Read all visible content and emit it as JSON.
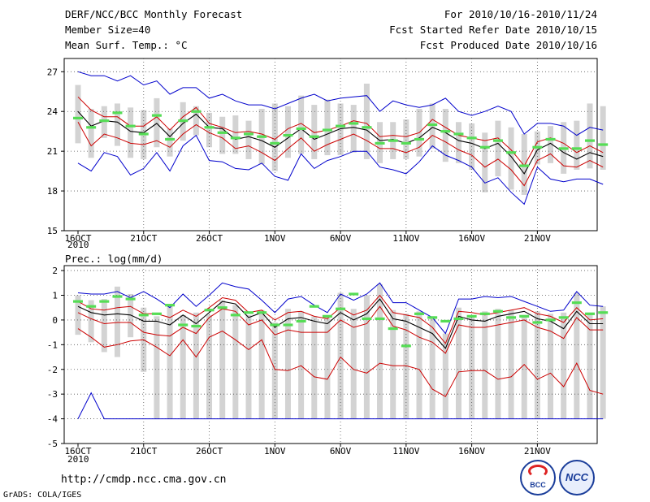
{
  "header": {
    "title": "DERF/NCC/BCC Monthly Forecast",
    "member_size": "Member Size=40",
    "variable": "Mean Surf. Temp.: °C",
    "period": "For 2010/10/16-2010/11/24",
    "started": "Fcst Started Refer Date 2010/10/15",
    "produced": "Fcst Produced Date 2010/10/16"
  },
  "footer": {
    "url": "http://cmdp.ncc.cma.gov.cn",
    "grads": "GrADS: COLA/IGES",
    "logo_bcc": "BCC",
    "logo_ncc": "NCC"
  },
  "colors": {
    "max_min": "#0000cc",
    "spread": "#cc0000",
    "mean": "#000000",
    "median": "#55dd55",
    "box": "#d3d3d3",
    "grid": "#555555"
  },
  "chart_data": [
    {
      "type": "box-line",
      "title": "Mean Surf. Temp.: °C",
      "x_tick_labels": [
        "16OCT",
        "21OCT",
        "26OCT",
        "1NOV",
        "6NOV",
        "11NOV",
        "16NOV",
        "21NOV"
      ],
      "x_start_label": "2010",
      "ylim": [
        15,
        28
      ],
      "yticks": [
        15,
        18,
        21,
        24,
        27
      ],
      "days": 40,
      "series": [
        {
          "name": "max",
          "values": [
            27.0,
            26.7,
            26.7,
            26.3,
            26.7,
            26.0,
            26.3,
            25.3,
            25.8,
            25.8,
            25.0,
            25.3,
            24.8,
            24.5,
            24.5,
            24.2,
            24.6,
            25.0,
            25.3,
            24.8,
            25.0,
            25.1,
            25.2,
            24.0,
            24.8,
            24.5,
            24.3,
            24.5,
            25.0,
            24.0,
            23.7,
            24.0,
            24.4,
            24.0,
            22.3,
            23.1,
            23.1,
            22.9,
            22.2,
            22.8,
            22.6
          ]
        },
        {
          "name": "upper",
          "values": [
            25.1,
            24.1,
            23.6,
            23.6,
            22.9,
            22.9,
            23.6,
            22.6,
            23.6,
            24.3,
            23.1,
            22.8,
            22.4,
            22.5,
            22.3,
            21.9,
            22.7,
            23.1,
            22.4,
            22.6,
            22.9,
            23.3,
            23.1,
            22.1,
            22.2,
            22.1,
            22.4,
            23.4,
            22.8,
            22.2,
            22.0,
            21.8,
            22.0,
            21.1,
            19.9,
            21.7,
            22.0,
            21.6,
            20.9,
            21.4,
            20.9
          ]
        },
        {
          "name": "mean",
          "values": [
            24.0,
            22.9,
            23.3,
            23.2,
            22.5,
            22.4,
            23.1,
            22.1,
            23.1,
            23.8,
            22.8,
            22.7,
            21.9,
            22.1,
            21.8,
            21.3,
            22.0,
            22.7,
            21.9,
            22.3,
            22.7,
            22.8,
            22.6,
            21.8,
            21.9,
            21.6,
            22.0,
            22.8,
            22.4,
            21.8,
            21.6,
            21.2,
            21.6,
            20.6,
            19.3,
            21.1,
            21.6,
            20.9,
            20.4,
            20.9,
            20.6
          ]
        },
        {
          "name": "lower",
          "values": [
            23.2,
            21.4,
            22.3,
            22.0,
            21.6,
            21.5,
            21.8,
            21.3,
            22.3,
            23.0,
            22.4,
            22.0,
            21.2,
            21.4,
            20.9,
            20.3,
            21.2,
            22.0,
            21.0,
            21.5,
            21.9,
            22.3,
            21.8,
            21.2,
            21.2,
            20.9,
            21.3,
            22.2,
            21.7,
            21.1,
            20.7,
            19.8,
            20.4,
            19.6,
            18.4,
            20.3,
            20.8,
            19.9,
            19.8,
            20.3,
            19.8
          ]
        },
        {
          "name": "min",
          "values": [
            20.1,
            19.5,
            20.9,
            20.6,
            19.2,
            19.7,
            20.9,
            19.5,
            21.4,
            22.2,
            20.3,
            20.2,
            19.7,
            19.6,
            20.1,
            19.1,
            18.8,
            20.8,
            19.7,
            20.3,
            20.6,
            21.0,
            21.0,
            19.8,
            19.6,
            19.3,
            20.2,
            21.4,
            20.7,
            20.3,
            19.8,
            18.6,
            19.0,
            17.9,
            17.0,
            19.8,
            18.9,
            18.7,
            18.9,
            18.9,
            18.5
          ]
        },
        {
          "name": "median",
          "values": [
            23.5,
            22.8,
            23.3,
            23.9,
            22.9,
            22.3,
            23.7,
            21.9,
            23.3,
            24.0,
            22.8,
            22.4,
            22.0,
            22.3,
            22.1,
            21.6,
            22.2,
            22.7,
            22.1,
            22.6,
            22.9,
            23.1,
            22.8,
            21.6,
            21.8,
            21.6,
            21.9,
            23.0,
            22.5,
            22.3,
            22.0,
            21.3,
            21.8,
            20.9,
            19.9,
            21.3,
            21.9,
            21.2,
            21.2,
            21.8,
            21.5
          ]
        },
        {
          "name": "box_high",
          "values": [
            26.0,
            24.2,
            24.4,
            24.6,
            24.3,
            24.1,
            25.0,
            22.7,
            24.7,
            24.4,
            23.9,
            23.6,
            23.7,
            23.3,
            24.2,
            24.6,
            24.4,
            25.2,
            24.5,
            24.9,
            24.6,
            24.5,
            26.1,
            23.2,
            23.2,
            23.4,
            24.2,
            24.6,
            24.2,
            23.2,
            23.1,
            22.4,
            23.3,
            22.8,
            22.3,
            22.5,
            22.9,
            23.2,
            23.3,
            24.6,
            24.4
          ]
        },
        {
          "name": "box_low",
          "values": [
            21.6,
            20.5,
            22.0,
            21.4,
            20.5,
            20.4,
            21.3,
            20.6,
            21.8,
            22.2,
            21.3,
            20.8,
            20.8,
            20.4,
            20.0,
            19.5,
            20.5,
            20.8,
            20.4,
            20.7,
            20.7,
            20.9,
            20.4,
            20.1,
            20.4,
            20.4,
            20.6,
            21.2,
            20.2,
            20.1,
            19.6,
            17.9,
            19.1,
            18.1,
            17.7,
            20.0,
            20.1,
            19.3,
            19.6,
            19.7,
            19.6
          ]
        }
      ]
    },
    {
      "type": "box-line",
      "title": "Prec.: log(mm/d)",
      "x_tick_labels": [
        "16OCT",
        "21OCT",
        "26OCT",
        "1NOV",
        "6NOV",
        "11NOV",
        "16NOV",
        "21NOV"
      ],
      "x_start_label": "2010",
      "ylim": [
        -5,
        2.2
      ],
      "yticks": [
        -5,
        -4,
        -3,
        -2,
        -1,
        0,
        1,
        2
      ],
      "days": 40,
      "series": [
        {
          "name": "max",
          "values": [
            1.1,
            1.05,
            1.05,
            1.15,
            0.9,
            1.15,
            0.85,
            0.5,
            1.05,
            0.55,
            1.0,
            1.5,
            1.35,
            1.25,
            0.8,
            0.3,
            0.85,
            0.95,
            0.6,
            0.3,
            1.05,
            0.8,
            1.05,
            1.5,
            0.7,
            0.7,
            0.4,
            0.1,
            -0.55,
            0.85,
            0.85,
            0.95,
            0.9,
            0.95,
            0.75,
            0.55,
            0.35,
            0.4,
            1.15,
            0.6,
            0.55
          ]
        },
        {
          "name": "upper",
          "values": [
            0.75,
            0.45,
            0.4,
            0.5,
            0.55,
            0.25,
            0.25,
            0.1,
            0.4,
            0.15,
            0.5,
            0.9,
            0.8,
            0.3,
            0.4,
            0.0,
            0.3,
            0.35,
            0.15,
            0.05,
            0.5,
            0.2,
            0.4,
            1.0,
            0.3,
            0.2,
            0.1,
            -0.3,
            -0.95,
            0.35,
            0.3,
            0.2,
            0.3,
            0.4,
            0.5,
            0.25,
            0.15,
            -0.1,
            0.5,
            0.0,
            0.05
          ]
        },
        {
          "name": "mean",
          "values": [
            0.55,
            0.3,
            0.2,
            0.25,
            0.2,
            -0.05,
            -0.05,
            -0.2,
            0.2,
            -0.15,
            0.3,
            0.75,
            0.65,
            0.1,
            0.3,
            -0.3,
            0.05,
            0.1,
            -0.05,
            -0.15,
            0.3,
            0.0,
            0.25,
            0.85,
            0.05,
            -0.05,
            -0.3,
            -0.55,
            -1.15,
            0.15,
            0.0,
            -0.05,
            0.15,
            0.25,
            0.35,
            0.05,
            -0.05,
            -0.35,
            0.35,
            -0.15,
            -0.15
          ]
        },
        {
          "name": "lower",
          "values": [
            0.3,
            0.05,
            -0.15,
            -0.1,
            -0.1,
            -0.5,
            -0.6,
            -0.65,
            -0.3,
            -0.55,
            0.1,
            0.45,
            0.35,
            -0.2,
            0.0,
            -0.6,
            -0.4,
            -0.5,
            -0.5,
            -0.5,
            0.0,
            -0.3,
            -0.15,
            0.55,
            -0.25,
            -0.4,
            -0.7,
            -0.9,
            -1.35,
            -0.2,
            -0.3,
            -0.3,
            -0.2,
            -0.1,
            0.0,
            -0.3,
            -0.45,
            -0.75,
            0.1,
            -0.4,
            -0.4
          ]
        },
        {
          "name": "spread_low",
          "values": [
            -0.35,
            -0.7,
            -1.1,
            -1.0,
            -0.85,
            -0.8,
            -1.1,
            -1.45,
            -0.8,
            -1.5,
            -0.7,
            -0.45,
            -0.8,
            -1.2,
            -0.8,
            -2.0,
            -2.05,
            -1.85,
            -2.3,
            -2.4,
            -1.5,
            -2.0,
            -2.15,
            -1.75,
            -1.85,
            -1.85,
            -2.0,
            -2.8,
            -3.1,
            -2.1,
            -2.05,
            -2.05,
            -2.4,
            -2.3,
            -1.8,
            -2.4,
            -2.15,
            -2.7,
            -1.75,
            -2.85,
            -3.0
          ]
        },
        {
          "name": "min",
          "values": [
            -4.0,
            -2.95,
            -4.0,
            -4.0,
            -4.0,
            -4.0,
            -4.0,
            -4.0,
            -4.0,
            -4.0,
            -4.0,
            -4.0,
            -4.0,
            -4.0,
            -4.0,
            -4.0,
            -4.0,
            -4.0,
            -4.0,
            -4.0,
            -4.0,
            -4.0,
            -4.0,
            -4.0,
            -4.0,
            -4.0,
            -4.0,
            -4.0,
            -4.0,
            -4.0,
            -4.0,
            -4.0,
            -4.0,
            -4.0,
            -4.0,
            -4.0,
            -4.0,
            -4.0,
            -4.0,
            -4.0,
            -4.0
          ]
        },
        {
          "name": "median",
          "values": [
            0.75,
            0.55,
            0.75,
            0.95,
            0.85,
            0.2,
            0.25,
            0.6,
            -0.2,
            -0.25,
            0.4,
            0.5,
            0.2,
            0.3,
            0.3,
            -0.2,
            -0.2,
            -0.05,
            0.55,
            0.15,
            0.45,
            1.05,
            0.05,
            0.05,
            -0.35,
            -1.05,
            0.25,
            0.1,
            -0.05,
            0.05,
            0.15,
            0.25,
            0.35,
            0.1,
            0.15,
            -0.1,
            0.0,
            0.1,
            0.7,
            0.25,
            0.3
          ]
        },
        {
          "name": "box_high",
          "values": [
            1.0,
            0.8,
            0.85,
            1.35,
            1.05,
            0.5,
            0.15,
            0.6,
            0.2,
            0.3,
            0.2,
            0.8,
            0.6,
            0.2,
            0.4,
            -0.1,
            0.45,
            0.35,
            0.15,
            0.2,
            1.1,
            0.45,
            1.0,
            1.45,
            0.4,
            0.25,
            0.35,
            0.15,
            -0.55,
            0.5,
            0.1,
            0.35,
            0.45,
            0.4,
            0.2,
            0.35,
            0.25,
            0.3,
            1.1,
            0.3,
            0.55
          ]
        },
        {
          "name": "box_low",
          "values": [
            -0.6,
            -0.9,
            -1.3,
            -1.5,
            -0.7,
            -2.1,
            -4.0,
            -4.0,
            -4.0,
            -4.0,
            -4.0,
            -4.0,
            -4.0,
            -4.0,
            -4.0,
            -4.0,
            -4.0,
            -4.0,
            -4.0,
            -4.0,
            -4.0,
            -4.0,
            -4.0,
            -4.0,
            -4.0,
            -4.0,
            -4.0,
            -4.0,
            -4.0,
            -4.0,
            -4.0,
            -4.0,
            -4.0,
            -4.0,
            -4.0,
            -4.0,
            -4.0,
            -4.0,
            -4.0,
            -4.0,
            -4.0
          ]
        }
      ]
    }
  ]
}
